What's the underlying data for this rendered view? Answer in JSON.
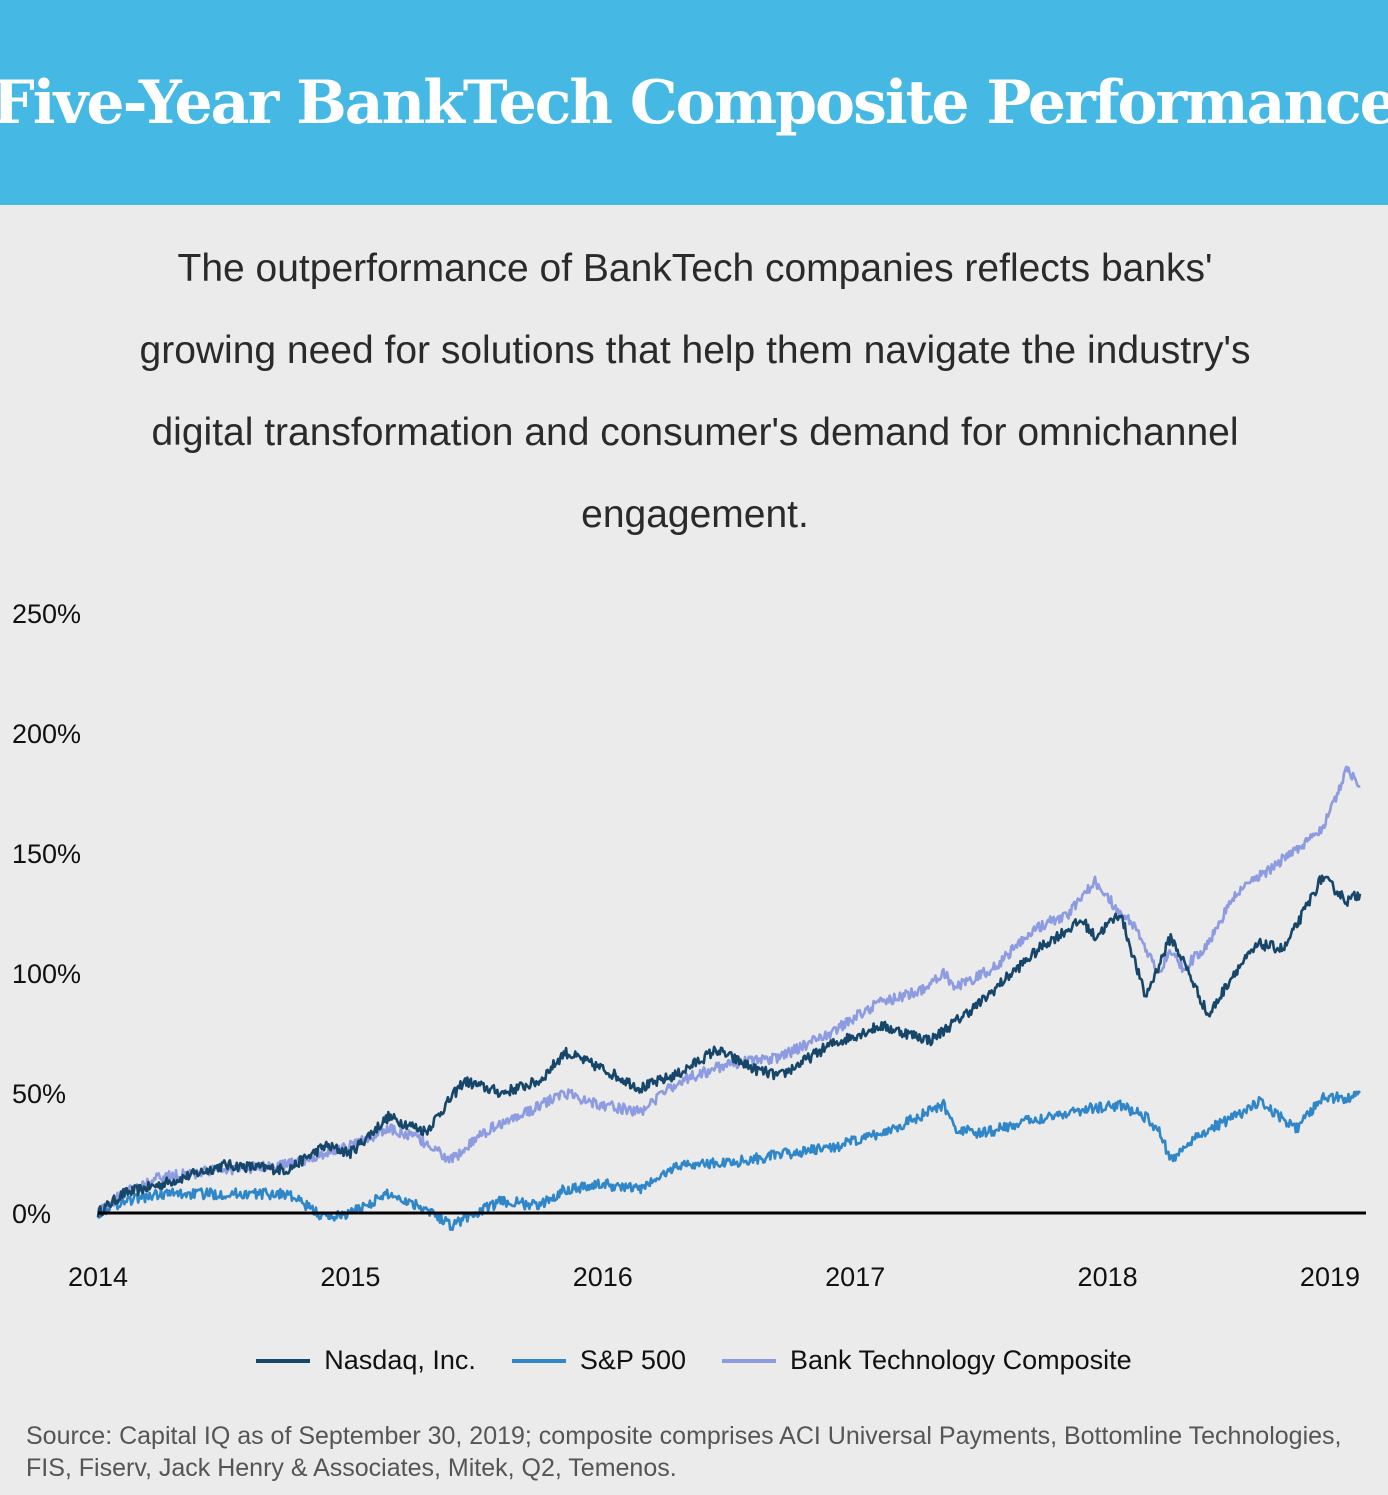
{
  "header": {
    "title": "Five-Year BankTech Composite Performance"
  },
  "subtitle": "The outperformance of BankTech companies reflects banks' growing need for solutions that help them navigate the industry's digital transformation and consumer's demand for omnichannel engagement.",
  "colors": {
    "banner": "#46b8e4",
    "background": "#ebebeb",
    "nasdaq": "#16466a",
    "sp500": "#2f86c8",
    "banktech": "#8d9be0"
  },
  "source": "Source: Capital IQ as of September 30, 2019; composite comprises ACI Universal Payments, Bottomline Technologies, FIS, Fiserv, Jack Henry & Associates, Mitek, Q2, Temenos.",
  "chart_data": {
    "type": "line",
    "x_ticks": [
      "2014",
      "2015",
      "2016",
      "2017",
      "2018",
      "2019"
    ],
    "y_ticks": [
      0,
      50,
      100,
      150,
      200,
      250
    ],
    "y_tick_labels": [
      "0%",
      "50%",
      "100%",
      "150%",
      "200%",
      "250%"
    ],
    "xlim": [
      2014,
      2019
    ],
    "ylim": [
      -10,
      250
    ],
    "grid": false,
    "legend_position": "bottom",
    "series": [
      {
        "name": "Nasdaq, Inc.",
        "color": "#16466a",
        "x": [
          2014.0,
          2014.1,
          2014.25,
          2014.5,
          2014.75,
          2014.9,
          2015.0,
          2015.15,
          2015.3,
          2015.45,
          2015.6,
          2015.75,
          2015.85,
          2016.0,
          2016.15,
          2016.3,
          2016.45,
          2016.6,
          2016.7,
          2016.9,
          2017.1,
          2017.3,
          2017.5,
          2017.6,
          2017.75,
          2017.9,
          2017.95,
          2018.05,
          2018.15,
          2018.25,
          2018.3,
          2018.4,
          2018.5,
          2018.6,
          2018.7,
          2018.85,
          2018.95,
          2019.0
        ],
        "y": [
          0,
          8,
          12,
          20,
          18,
          28,
          25,
          40,
          34,
          55,
          50,
          55,
          67,
          60,
          52,
          58,
          68,
          60,
          57,
          70,
          78,
          72,
          88,
          98,
          112,
          122,
          115,
          125,
          90,
          115,
          105,
          82,
          100,
          112,
          110,
          140,
          130,
          133
        ]
      },
      {
        "name": "S&P 500",
        "color": "#2f86c8",
        "x": [
          2014.0,
          2014.1,
          2014.25,
          2014.5,
          2014.75,
          2014.9,
          2015.0,
          2015.15,
          2015.3,
          2015.4,
          2015.6,
          2015.75,
          2015.85,
          2016.0,
          2016.15,
          2016.3,
          2016.5,
          2016.75,
          2016.9,
          2017.1,
          2017.25,
          2017.35,
          2017.4,
          2017.5,
          2017.6,
          2017.75,
          2017.9,
          2018.05,
          2018.15,
          2018.2,
          2018.25,
          2018.35,
          2018.5,
          2018.6,
          2018.75,
          2018.85,
          2018.95,
          2019.0
        ],
        "y": [
          0,
          5,
          8,
          8,
          8,
          -2,
          0,
          8,
          2,
          -5,
          5,
          3,
          10,
          12,
          10,
          20,
          21,
          25,
          27,
          33,
          40,
          45,
          35,
          33,
          36,
          40,
          43,
          45,
          40,
          35,
          22,
          32,
          40,
          46,
          35,
          48,
          48,
          50
        ]
      },
      {
        "name": "Bank Technology Composite",
        "color": "#8d9be0",
        "x": [
          2014.0,
          2014.1,
          2014.25,
          2014.5,
          2014.75,
          2014.9,
          2015.0,
          2015.15,
          2015.25,
          2015.4,
          2015.55,
          2015.7,
          2015.85,
          2016.0,
          2016.15,
          2016.3,
          2016.5,
          2016.7,
          2016.9,
          2017.1,
          2017.25,
          2017.35,
          2017.4,
          2017.55,
          2017.7,
          2017.85,
          2017.95,
          2018.05,
          2018.1,
          2018.2,
          2018.25,
          2018.3,
          2018.4,
          2018.5,
          2018.6,
          2018.7,
          2018.85,
          2018.95,
          2019.0
        ],
        "y": [
          0,
          8,
          15,
          18,
          20,
          25,
          28,
          35,
          32,
          22,
          35,
          42,
          50,
          45,
          42,
          55,
          62,
          65,
          75,
          88,
          92,
          100,
          94,
          102,
          118,
          125,
          138,
          125,
          120,
          100,
          110,
          102,
          112,
          132,
          140,
          148,
          160,
          185,
          178
        ]
      }
    ]
  }
}
